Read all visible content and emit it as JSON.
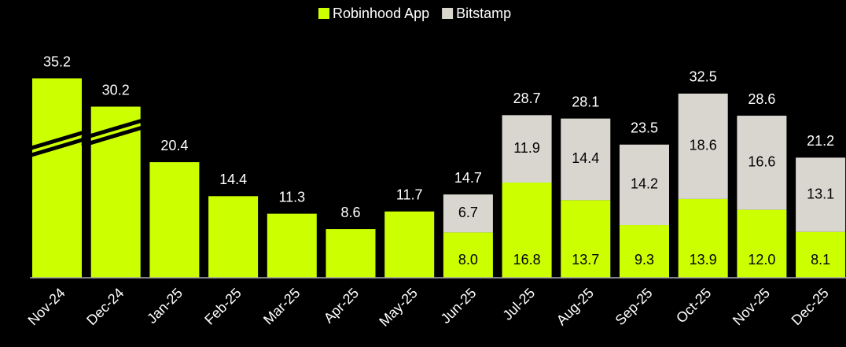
{
  "chart_data": {
    "type": "stacked_bar",
    "categories": [
      "Nov-24",
      "Dec-24",
      "Jan-25",
      "Feb-25",
      "Mar-25",
      "Apr-25",
      "May-25",
      "Jun-25",
      "Jul-25",
      "Aug-25",
      "Sep-25",
      "Oct-25",
      "Nov-25",
      "Dec-25"
    ],
    "series": [
      {
        "name": "Robinhood App",
        "color": "#ccff00",
        "values": [
          35.2,
          30.2,
          20.4,
          14.4,
          11.3,
          8.6,
          11.7,
          8.0,
          16.8,
          13.7,
          9.3,
          13.9,
          12.0,
          8.1
        ],
        "value_labels": [
          "35.2",
          "30.2",
          "20.4",
          "14.4",
          "11.3",
          "8.6",
          "11.7",
          "8.0",
          "16.8",
          "13.7",
          "9.3",
          "13.9",
          "12.0",
          "8.1"
        ]
      },
      {
        "name": "Bitstamp",
        "color": "#d9d6d0",
        "values": [
          null,
          null,
          null,
          null,
          null,
          null,
          null,
          6.7,
          11.9,
          14.4,
          14.2,
          18.6,
          16.6,
          13.1
        ]
      }
    ],
    "totals": [
      null,
      null,
      null,
      null,
      null,
      null,
      null,
      14.7,
      28.7,
      28.1,
      23.5,
      32.5,
      28.6,
      21.2
    ],
    "ylim": [
      0,
      36.8
    ],
    "legend": "top"
  }
}
